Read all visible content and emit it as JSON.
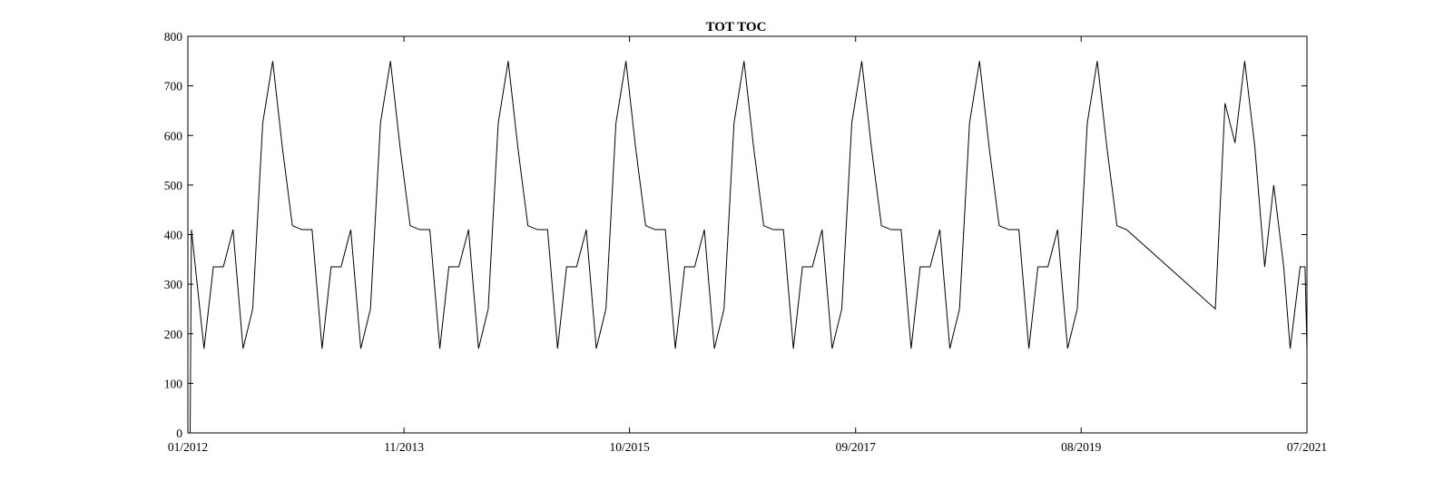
{
  "chart_data": {
    "type": "line",
    "title": "TOT TOC",
    "xlabel": "",
    "ylabel": "",
    "ylim": [
      0,
      800
    ],
    "xlim": [
      "2012-01",
      "2021-07"
    ],
    "yticks": [
      0,
      100,
      200,
      300,
      400,
      500,
      600,
      700,
      800
    ],
    "xticks": [
      {
        "date": "2012-01",
        "label": "01/2012"
      },
      {
        "date": "2013-11",
        "label": "11/2013"
      },
      {
        "date": "2015-10",
        "label": "10/2015"
      },
      {
        "date": "2017-09",
        "label": "09/2017"
      },
      {
        "date": "2019-08",
        "label": "08/2019"
      },
      {
        "date": "2021-07",
        "label": "07/2021"
      }
    ],
    "grid": false,
    "line_color": "#000000",
    "series": [
      {
        "points": [
          [
            "2012-01-08",
            0
          ],
          [
            "2012-01-12",
            410
          ],
          [
            "2012-02-20",
            170
          ],
          [
            "2012-03-20",
            335
          ],
          [
            "2012-04-20",
            335
          ],
          [
            "2012-05-20",
            410
          ],
          [
            "2012-06-20",
            170
          ],
          [
            "2012-07-20",
            250
          ],
          [
            "2012-08-20",
            625
          ],
          [
            "2012-09-20",
            750
          ],
          [
            "2012-10-20",
            575
          ],
          [
            "2012-11-20",
            418
          ],
          [
            "2012-12-20",
            410
          ],
          [
            "2013-01-20",
            410
          ],
          [
            "2013-02-20",
            170
          ],
          [
            "2013-03-20",
            335
          ],
          [
            "2013-04-20",
            335
          ],
          [
            "2013-05-20",
            410
          ],
          [
            "2013-06-20",
            170
          ],
          [
            "2013-07-20",
            250
          ],
          [
            "2013-08-20",
            625
          ],
          [
            "2013-09-20",
            750
          ],
          [
            "2013-10-20",
            575
          ],
          [
            "2013-11-20",
            418
          ],
          [
            "2013-12-20",
            410
          ],
          [
            "2014-01-20",
            410
          ],
          [
            "2014-02-20",
            170
          ],
          [
            "2014-03-20",
            335
          ],
          [
            "2014-04-20",
            335
          ],
          [
            "2014-05-20",
            410
          ],
          [
            "2014-06-20",
            170
          ],
          [
            "2014-07-20",
            250
          ],
          [
            "2014-08-20",
            625
          ],
          [
            "2014-09-20",
            750
          ],
          [
            "2014-10-20",
            575
          ],
          [
            "2014-11-20",
            418
          ],
          [
            "2014-12-20",
            410
          ],
          [
            "2015-01-20",
            410
          ],
          [
            "2015-02-20",
            170
          ],
          [
            "2015-03-20",
            335
          ],
          [
            "2015-04-20",
            335
          ],
          [
            "2015-05-20",
            410
          ],
          [
            "2015-06-20",
            170
          ],
          [
            "2015-07-20",
            250
          ],
          [
            "2015-08-20",
            625
          ],
          [
            "2015-09-20",
            750
          ],
          [
            "2015-10-20",
            575
          ],
          [
            "2015-11-20",
            418
          ],
          [
            "2015-12-20",
            410
          ],
          [
            "2016-01-20",
            410
          ],
          [
            "2016-02-20",
            170
          ],
          [
            "2016-03-20",
            335
          ],
          [
            "2016-04-20",
            335
          ],
          [
            "2016-05-20",
            410
          ],
          [
            "2016-06-20",
            170
          ],
          [
            "2016-07-20",
            250
          ],
          [
            "2016-08-20",
            625
          ],
          [
            "2016-09-20",
            750
          ],
          [
            "2016-10-20",
            575
          ],
          [
            "2016-11-20",
            418
          ],
          [
            "2016-12-20",
            410
          ],
          [
            "2017-01-20",
            410
          ],
          [
            "2017-02-20",
            170
          ],
          [
            "2017-03-20",
            335
          ],
          [
            "2017-04-20",
            335
          ],
          [
            "2017-05-20",
            410
          ],
          [
            "2017-06-20",
            170
          ],
          [
            "2017-07-20",
            250
          ],
          [
            "2017-08-20",
            625
          ],
          [
            "2017-09-20",
            750
          ],
          [
            "2017-10-20",
            575
          ],
          [
            "2017-11-20",
            418
          ],
          [
            "2017-12-20",
            410
          ],
          [
            "2018-01-20",
            410
          ],
          [
            "2018-02-20",
            170
          ],
          [
            "2018-03-20",
            335
          ],
          [
            "2018-04-20",
            335
          ],
          [
            "2018-05-20",
            410
          ],
          [
            "2018-06-20",
            170
          ],
          [
            "2018-07-20",
            250
          ],
          [
            "2018-08-20",
            625
          ],
          [
            "2018-09-20",
            750
          ],
          [
            "2018-10-20",
            575
          ],
          [
            "2018-11-20",
            418
          ],
          [
            "2018-12-20",
            410
          ],
          [
            "2019-01-20",
            410
          ],
          [
            "2019-02-20",
            170
          ],
          [
            "2019-03-20",
            335
          ],
          [
            "2019-04-20",
            335
          ],
          [
            "2019-05-20",
            410
          ],
          [
            "2019-06-20",
            170
          ],
          [
            "2019-07-20",
            250
          ],
          [
            "2019-08-20",
            625
          ],
          [
            "2019-09-20",
            750
          ],
          [
            "2019-10-20",
            575
          ],
          [
            "2019-11-20",
            418
          ],
          [
            "2019-12-20",
            410
          ],
          [
            "2020-09-20",
            250
          ],
          [
            "2020-10-20",
            665
          ],
          [
            "2020-11-20",
            585
          ],
          [
            "2020-12-20",
            750
          ],
          [
            "2021-01-20",
            580
          ],
          [
            "2021-02-20",
            335
          ],
          [
            "2021-03-20",
            500
          ],
          [
            "2021-04-20",
            335
          ],
          [
            "2021-05-10",
            170
          ],
          [
            "2021-06-10",
            335
          ],
          [
            "2021-06-25",
            335
          ],
          [
            "2021-07-01",
            170
          ]
        ]
      }
    ]
  }
}
